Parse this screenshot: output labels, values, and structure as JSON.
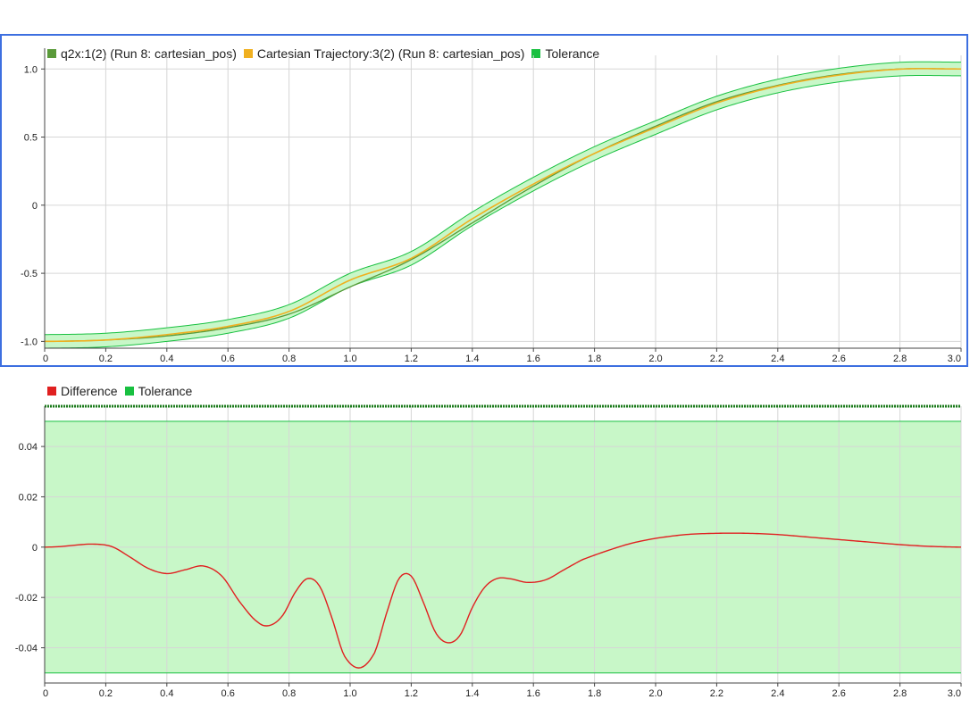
{
  "colors": {
    "q2x": "#5a9a3a",
    "cartesian": "#f0b020",
    "tolerance": "#18c040",
    "tolerance_fill": "#c8f7c8",
    "difference": "#e02020",
    "panel_border": "#3d6fe0",
    "grid": "#d6d6d6"
  },
  "chart_data": [
    {
      "type": "line",
      "legend": [
        {
          "label": "q2x:1(2) (Run 8: cartesian_pos)",
          "color": "#5a9a3a"
        },
        {
          "label": "Cartesian Trajectory:3(2) (Run 8: cartesian_pos)",
          "color": "#f0b020"
        },
        {
          "label": "Tolerance",
          "color": "#18c040"
        }
      ],
      "xlim": [
        0,
        3.0
      ],
      "ylim": [
        -1.05,
        1.1
      ],
      "xticks": [
        "0",
        "0.2",
        "0.4",
        "0.6",
        "0.8",
        "1.0",
        "1.2",
        "1.4",
        "1.6",
        "1.8",
        "2.0",
        "2.2",
        "2.4",
        "2.6",
        "2.8",
        "3.0"
      ],
      "yticks": [
        {
          "v": 1.0,
          "label": "1.0"
        },
        {
          "v": 0.5,
          "label": "0.5"
        },
        {
          "v": 0,
          "label": "0"
        },
        {
          "v": -0.5,
          "label": "-0.5"
        },
        {
          "v": -1.0,
          "label": "-1.0"
        }
      ],
      "tolerance_band": 0.05,
      "x": [
        0,
        0.2,
        0.4,
        0.6,
        0.8,
        1.0,
        1.2,
        1.4,
        1.6,
        1.8,
        2.0,
        2.2,
        2.4,
        2.6,
        2.8,
        3.0
      ],
      "series": [
        {
          "name": "q2x:1(2) (Run 8: cartesian_pos)",
          "values": [
            -1.0,
            -0.99,
            -0.96,
            -0.9,
            -0.8,
            -0.6,
            -0.4,
            -0.13,
            0.14,
            0.38,
            0.58,
            0.76,
            0.88,
            0.96,
            1.0,
            1.0
          ]
        },
        {
          "name": "Cartesian Trajectory:3(2) (Run 8: cartesian_pos)",
          "values": [
            -1.0,
            -0.99,
            -0.95,
            -0.89,
            -0.78,
            -0.55,
            -0.39,
            -0.1,
            0.155,
            0.38,
            0.57,
            0.75,
            0.875,
            0.955,
            0.999,
            1.0
          ]
        }
      ]
    },
    {
      "type": "line",
      "legend": [
        {
          "label": "Difference",
          "color": "#e02020"
        },
        {
          "label": "Tolerance",
          "color": "#18c040"
        }
      ],
      "xlim": [
        0,
        3.0
      ],
      "ylim": [
        -0.054,
        0.056
      ],
      "xticks": [
        "0",
        "0.2",
        "0.4",
        "0.6",
        "0.8",
        "1.0",
        "1.2",
        "1.4",
        "1.6",
        "1.8",
        "2.0",
        "2.2",
        "2.4",
        "2.6",
        "2.8",
        "3.0"
      ],
      "yticks": [
        {
          "v": 0.04,
          "label": "0.04"
        },
        {
          "v": 0.02,
          "label": "0.02"
        },
        {
          "v": 0,
          "label": "0"
        },
        {
          "v": -0.02,
          "label": "-0.02"
        },
        {
          "v": -0.04,
          "label": "-0.04"
        }
      ],
      "tolerance_band": 0.05,
      "series": [
        {
          "name": "Difference",
          "x": [
            0,
            0.05,
            0.1,
            0.16,
            0.22,
            0.28,
            0.34,
            0.4,
            0.46,
            0.52,
            0.58,
            0.64,
            0.7,
            0.74,
            0.78,
            0.82,
            0.86,
            0.9,
            0.94,
            0.98,
            1.03,
            1.08,
            1.12,
            1.16,
            1.2,
            1.24,
            1.28,
            1.32,
            1.36,
            1.4,
            1.44,
            1.48,
            1.52,
            1.58,
            1.64,
            1.7,
            1.76,
            1.84,
            1.92,
            2.0,
            2.1,
            2.2,
            2.3,
            2.4,
            2.5,
            2.6,
            2.7,
            2.8,
            2.9,
            3.0
          ],
          "values": [
            0,
            0.0002,
            0.0008,
            0.0012,
            0.0002,
            -0.004,
            -0.0085,
            -0.0105,
            -0.009,
            -0.0075,
            -0.0115,
            -0.022,
            -0.03,
            -0.031,
            -0.027,
            -0.018,
            -0.0125,
            -0.0155,
            -0.028,
            -0.043,
            -0.048,
            -0.042,
            -0.026,
            -0.0125,
            -0.0115,
            -0.022,
            -0.034,
            -0.038,
            -0.035,
            -0.024,
            -0.016,
            -0.0125,
            -0.0125,
            -0.014,
            -0.013,
            -0.009,
            -0.005,
            -0.0015,
            0.0015,
            0.0035,
            0.005,
            0.0055,
            0.0055,
            0.005,
            0.004,
            0.003,
            0.002,
            0.001,
            0.0003,
            0
          ]
        }
      ]
    }
  ]
}
